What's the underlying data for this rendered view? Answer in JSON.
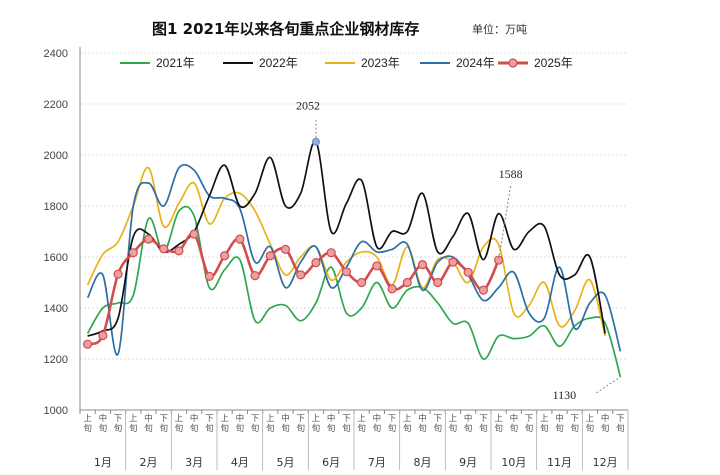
{
  "chart_data": {
    "type": "line",
    "title": "图1  2021年以来各旬重点企业钢材库存",
    "unit_label": "单位：万吨",
    "ylim": [
      1000,
      2400
    ],
    "yticks": [
      "1000",
      "1200",
      "1400",
      "1600",
      "1800",
      "2000",
      "2200",
      "2400"
    ],
    "dekad_labels": [
      "上旬",
      "中旬",
      "下旬"
    ],
    "months": [
      "1月",
      "2月",
      "3月",
      "4月",
      "5月",
      "6月",
      "7月",
      "8月",
      "9月",
      "10月",
      "11月",
      "12月"
    ],
    "legend_position": "top",
    "series": [
      {
        "name": "2021年",
        "color": "#2ea84f",
        "values": [
          1300,
          1400,
          1420,
          1450,
          1750,
          1620,
          1780,
          1760,
          1480,
          1550,
          1590,
          1350,
          1400,
          1410,
          1350,
          1420,
          1560,
          1380,
          1400,
          1500,
          1400,
          1470,
          1480,
          1420,
          1340,
          1340,
          1200,
          1290,
          1280,
          1290,
          1330,
          1250,
          1330,
          1360,
          1340,
          1130
        ]
      },
      {
        "name": "2022年",
        "color": "#111111",
        "values": [
          1290,
          1310,
          1360,
          1680,
          1690,
          1620,
          1650,
          1700,
          1840,
          1960,
          1800,
          1850,
          1990,
          1800,
          1850,
          2052,
          1700,
          1810,
          1900,
          1640,
          1700,
          1700,
          1850,
          1620,
          1680,
          1770,
          1590,
          1770,
          1630,
          1700,
          1720,
          1530,
          1530,
          1600,
          1300
        ]
      },
      {
        "name": "2023年",
        "color": "#e8b31a",
        "values": [
          1490,
          1610,
          1660,
          1800,
          1950,
          1720,
          1810,
          1890,
          1730,
          1830,
          1850,
          1780,
          1650,
          1530,
          1600,
          1640,
          1510,
          1580,
          1620,
          1600,
          1490,
          1640,
          1480,
          1590,
          1580,
          1500,
          1640,
          1650,
          1380,
          1410,
          1500,
          1330,
          1390,
          1510,
          1290
        ]
      },
      {
        "name": "2024年",
        "color": "#2c6ea5",
        "values": [
          1440,
          1530,
          1220,
          1800,
          1890,
          1800,
          1950,
          1940,
          1840,
          1830,
          1790,
          1580,
          1640,
          1480,
          1580,
          1640,
          1480,
          1560,
          1660,
          1620,
          1630,
          1650,
          1470,
          1580,
          1600,
          1530,
          1430,
          1480,
          1540,
          1380,
          1360,
          1560,
          1320,
          1420,
          1450,
          1230
        ]
      },
      {
        "name": "2025年",
        "color": "#d34d4d",
        "marker": "circle",
        "values": [
          1258,
          1292,
          1533,
          1617,
          1670,
          1632,
          1624,
          1690,
          1524,
          1605,
          1670,
          1527,
          1605,
          1630,
          1530,
          1578,
          1617,
          1542,
          1500,
          1565,
          1475,
          1500,
          1570,
          1500,
          1580,
          1540,
          1470,
          1588
        ]
      }
    ],
    "annotations": [
      {
        "text": "2052",
        "series": "2022年",
        "index": 15
      },
      {
        "text": "1588",
        "series": "2025年",
        "index": 27
      },
      {
        "text": "1130",
        "series": "2021年",
        "index": 35
      }
    ]
  }
}
